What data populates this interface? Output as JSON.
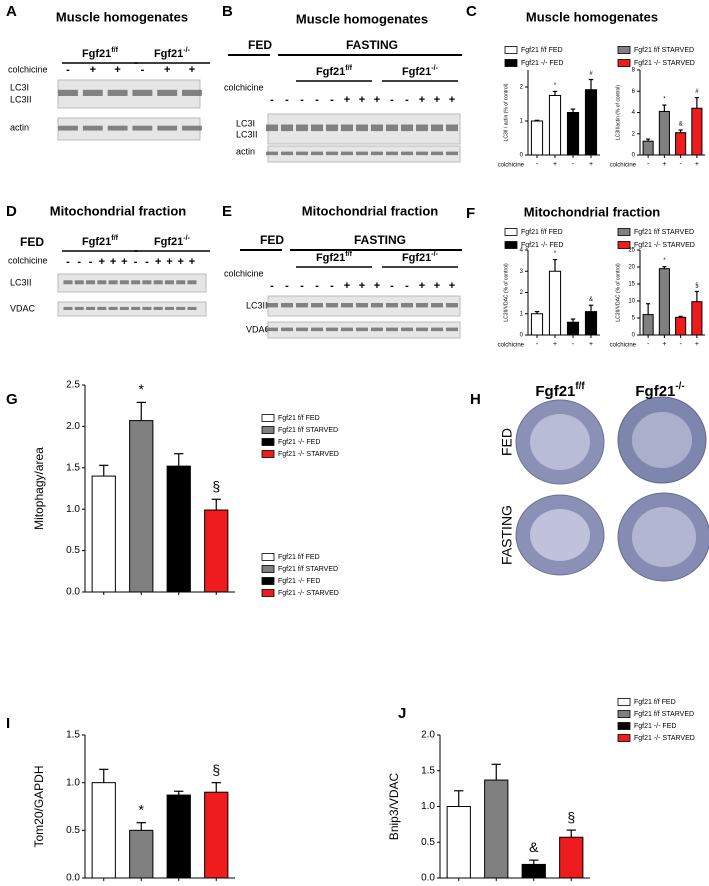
{
  "labels": {
    "C": {
      "letter": "C",
      "title": "Muscle homogenates"
    },
    "F": {
      "letter": "F",
      "title": "Mitochondrial fraction"
    }
  },
  "blots": [
    {
      "letter": "A",
      "title": "Muscle homogenates",
      "headers": [],
      "groups": [
        {
          "name": "Fgf21",
          "sup": "f/f"
        },
        {
          "name": "Fgf21",
          "sup": "-/-"
        }
      ],
      "colchicine": "colchicine",
      "lanes": [
        "-",
        "+",
        "+",
        "-",
        "+",
        "+"
      ],
      "rows": [
        "LC3I",
        "LC3II",
        "actin"
      ]
    },
    {
      "letter": "B",
      "title": "Muscle homogenates",
      "headers": [
        "FED",
        "FASTING"
      ],
      "groups": [
        {
          "name": "Fgf21",
          "sup": "f/f"
        },
        {
          "name": "Fgf21",
          "sup": "-/-"
        }
      ],
      "colchicine": "colchicine",
      "lanes": [
        "-",
        "-",
        "-",
        "-",
        "-",
        "+",
        "+",
        "+",
        "-",
        "-",
        "+",
        "+",
        "+"
      ],
      "rows": [
        "LC3I",
        "LC3II",
        "actin"
      ]
    },
    {
      "letter": "D",
      "title": "Mitochondrial fraction",
      "headers": [
        "FED"
      ],
      "groups": [
        {
          "name": "Fgf21",
          "sup": "f/f"
        },
        {
          "name": "Fgf21",
          "sup": "-/-"
        }
      ],
      "colchicine": "colchicine",
      "lanes": [
        "-",
        "-",
        "-",
        "+",
        "+",
        "+",
        "-",
        "-",
        "+",
        "+",
        "+",
        "+"
      ],
      "rows": [
        "LC3II",
        "VDAC"
      ]
    },
    {
      "letter": "E",
      "title": "Mitochondrial fraction",
      "headers": [
        "FED",
        "FASTING"
      ],
      "groups": [
        {
          "name": "Fgf21",
          "sup": "f/f"
        },
        {
          "name": "Fgf21",
          "sup": "-/-"
        }
      ],
      "colchicine": "colchicine",
      "lanes": [
        "-",
        "-",
        "-",
        "-",
        "-",
        "+",
        "+",
        "+",
        "-",
        "-",
        "+",
        "+",
        "+"
      ],
      "rows": [
        "LC3II",
        "VDAC"
      ]
    }
  ],
  "images": {
    "letter": "H",
    "columns": [
      {
        "name": "Fgf21",
        "sup": "f/f"
      },
      {
        "name": "Fgf21",
        "sup": "-/-"
      }
    ],
    "rows": [
      "FED",
      "FASTING"
    ]
  },
  "chart_data": [
    {
      "type": "bar",
      "ylabel": "LC3II / actin (% of control)",
      "xlabel": "colchicine",
      "categories": [
        "-",
        "+",
        "-",
        "+"
      ],
      "ylim": [
        0,
        2.5
      ],
      "yticks": [
        0,
        1,
        2
      ],
      "series": [
        {
          "name": "Fgf21 f/f FED",
          "color": "#ffffff",
          "values": [
            1.0,
            1.75,
            null,
            null
          ],
          "errors": [
            0.02,
            0.12,
            null,
            null
          ],
          "annotations": [
            null,
            "*",
            null,
            null
          ]
        },
        {
          "name": "Fgf21 -/- FED",
          "color": "#000000",
          "values": [
            null,
            null,
            1.25,
            1.92
          ],
          "errors": [
            null,
            null,
            0.1,
            0.3
          ],
          "annotations": [
            null,
            null,
            null,
            "#"
          ]
        }
      ]
    },
    {
      "type": "bar",
      "ylabel": "LC3II/actin (% of control)",
      "xlabel": "colchicine",
      "categories": [
        "-",
        "+",
        "-",
        "+"
      ],
      "ylim": [
        0,
        8
      ],
      "yticks": [
        0,
        2,
        4,
        6,
        8
      ],
      "series": [
        {
          "name": "Fgf21 f/f STARVED",
          "color": "#808080",
          "values": [
            1.3,
            4.1,
            null,
            null
          ],
          "errors": [
            0.2,
            0.6,
            null,
            null
          ],
          "annotations": [
            null,
            "*",
            null,
            null
          ]
        },
        {
          "name": "Fgf21 -/- STARVED",
          "color": "#ee1c1c",
          "values": [
            null,
            null,
            2.1,
            4.4
          ],
          "errors": [
            null,
            null,
            0.25,
            1.0
          ],
          "annotations": [
            null,
            null,
            "&",
            "#"
          ]
        }
      ]
    },
    {
      "type": "bar",
      "ylabel": "LC3II/VDAC (% of control)",
      "xlabel": "colchicine",
      "categories": [
        "-",
        "+",
        "-",
        "+"
      ],
      "ylim": [
        0,
        4
      ],
      "yticks": [
        0,
        1,
        2,
        3,
        4
      ],
      "series": [
        {
          "name": "Fgf21 f/f FED",
          "color": "#ffffff",
          "values": [
            1.0,
            3.0,
            null,
            null
          ],
          "errors": [
            0.1,
            0.55,
            null,
            null
          ],
          "annotations": [
            null,
            "*",
            null,
            null
          ]
        },
        {
          "name": "Fgf21 -/- FED",
          "color": "#000000",
          "values": [
            null,
            null,
            0.6,
            1.1
          ],
          "errors": [
            null,
            null,
            0.15,
            0.3
          ],
          "annotations": [
            null,
            null,
            null,
            "&"
          ]
        }
      ]
    },
    {
      "type": "bar",
      "ylabel": "LC3II/VDAC (% of control)",
      "xlabel": "colchicine",
      "categories": [
        "-",
        "+",
        "-",
        "+"
      ],
      "ylim": [
        0,
        25
      ],
      "yticks": [
        0,
        5,
        10,
        15,
        20,
        25
      ],
      "series": [
        {
          "name": "Fgf21 f/f STARVED",
          "color": "#808080",
          "values": [
            6.0,
            19.5,
            null,
            null
          ],
          "errors": [
            3.2,
            0.6,
            null,
            null
          ],
          "annotations": [
            null,
            "*",
            null,
            null
          ]
        },
        {
          "name": "Fgf21 -/- STARVED",
          "color": "#ee1c1c",
          "values": [
            null,
            null,
            5.2,
            9.8
          ],
          "errors": [
            null,
            null,
            0.3,
            3.0
          ],
          "annotations": [
            null,
            null,
            null,
            "§"
          ]
        }
      ]
    },
    {
      "type": "bar",
      "panel": "G",
      "ylabel": "Mitophagy/area",
      "categories": [
        null,
        null,
        null,
        null
      ],
      "ylim": [
        0,
        2.5
      ],
      "yticks": [
        {
          "value": 0,
          "label": "0.0"
        },
        0.5,
        {
          "value": 1,
          "label": "1.0"
        },
        1.5,
        {
          "value": 2,
          "label": "2.0"
        },
        2.5
      ],
      "series": [
        {
          "name": "Fgf21 f/f FED",
          "color": "#ffffff",
          "values": [
            1.4,
            null,
            null,
            null
          ],
          "errors": [
            0.13,
            null,
            null,
            null
          ],
          "annotations": [
            null,
            null,
            null,
            null
          ]
        },
        {
          "name": "Fgf21 f/f STARVED",
          "color": "#808080",
          "values": [
            null,
            2.07,
            null,
            null
          ],
          "errors": [
            null,
            0.22,
            null,
            null
          ],
          "annotations": [
            null,
            "*",
            null,
            null
          ]
        },
        {
          "name": "Fgf21 -/- FED",
          "color": "#000000",
          "values": [
            null,
            null,
            1.52,
            null
          ],
          "errors": [
            null,
            null,
            0.15,
            null
          ],
          "annotations": [
            null,
            null,
            null,
            null
          ]
        },
        {
          "name": "Fgf21 -/- STARVED",
          "color": "#ee1c1c",
          "values": [
            null,
            null,
            null,
            0.99
          ],
          "errors": [
            null,
            null,
            null,
            0.13
          ],
          "annotations": [
            null,
            null,
            null,
            "§"
          ]
        }
      ]
    },
    {
      "type": "bar",
      "panel": "I",
      "ylabel": "Tom20/GAPDH",
      "categories": [
        null,
        null,
        null,
        null
      ],
      "ylim": [
        0,
        1.5
      ],
      "yticks": [
        {
          "value": 0,
          "label": "0.0"
        },
        0.5,
        {
          "value": 1,
          "label": "1.0"
        },
        1.5
      ],
      "series": [
        {
          "name": "Fgf21 f/f FED",
          "color": "#ffffff",
          "values": [
            1.0,
            null,
            null,
            null
          ],
          "errors": [
            0.14,
            null,
            null,
            null
          ],
          "annotations": [
            null,
            null,
            null,
            null
          ]
        },
        {
          "name": "Fgf21 f/f STARVED",
          "color": "#808080",
          "values": [
            null,
            0.5,
            null,
            null
          ],
          "errors": [
            null,
            0.08,
            null,
            null
          ],
          "annotations": [
            null,
            "*",
            null,
            null
          ]
        },
        {
          "name": "Fgf21 -/- FED",
          "color": "#000000",
          "values": [
            null,
            null,
            0.87,
            null
          ],
          "errors": [
            null,
            null,
            0.04,
            null
          ],
          "annotations": [
            null,
            null,
            null,
            null
          ]
        },
        {
          "name": "Fgf21 -/- STARVED",
          "color": "#ee1c1c",
          "values": [
            null,
            null,
            null,
            0.9
          ],
          "errors": [
            null,
            null,
            null,
            0.1
          ],
          "annotations": [
            null,
            null,
            null,
            "§"
          ]
        }
      ]
    },
    {
      "type": "bar",
      "panel": "J",
      "ylabel": "Bnip3/VDAC",
      "categories": [
        null,
        null,
        null,
        null
      ],
      "ylim": [
        0,
        2
      ],
      "yticks": [
        {
          "value": 0,
          "label": "0.0"
        },
        0.5,
        {
          "value": 1,
          "label": "1.0"
        },
        1.5,
        {
          "value": 2,
          "label": "2.0"
        }
      ],
      "series": [
        {
          "name": "Fgf21 f/f FED",
          "color": "#ffffff",
          "values": [
            1.0,
            null,
            null,
            null
          ],
          "errors": [
            0.22,
            null,
            null,
            null
          ],
          "annotations": [
            null,
            null,
            null,
            null
          ]
        },
        {
          "name": "Fgf21 f/f STARVED",
          "color": "#808080",
          "values": [
            null,
            1.37,
            null,
            null
          ],
          "errors": [
            null,
            0.22,
            null,
            null
          ],
          "annotations": [
            null,
            null,
            null,
            null
          ]
        },
        {
          "name": "Fgf21 -/- FED",
          "color": "#000000",
          "values": [
            null,
            null,
            0.19,
            null
          ],
          "errors": [
            null,
            null,
            0.06,
            null
          ],
          "annotations": [
            null,
            null,
            "&",
            null
          ]
        },
        {
          "name": "Fgf21 -/- STARVED",
          "color": "#ee1c1c",
          "values": [
            null,
            null,
            null,
            0.57
          ],
          "errors": [
            null,
            null,
            null,
            0.1
          ],
          "annotations": [
            null,
            null,
            null,
            "§"
          ]
        }
      ]
    }
  ]
}
